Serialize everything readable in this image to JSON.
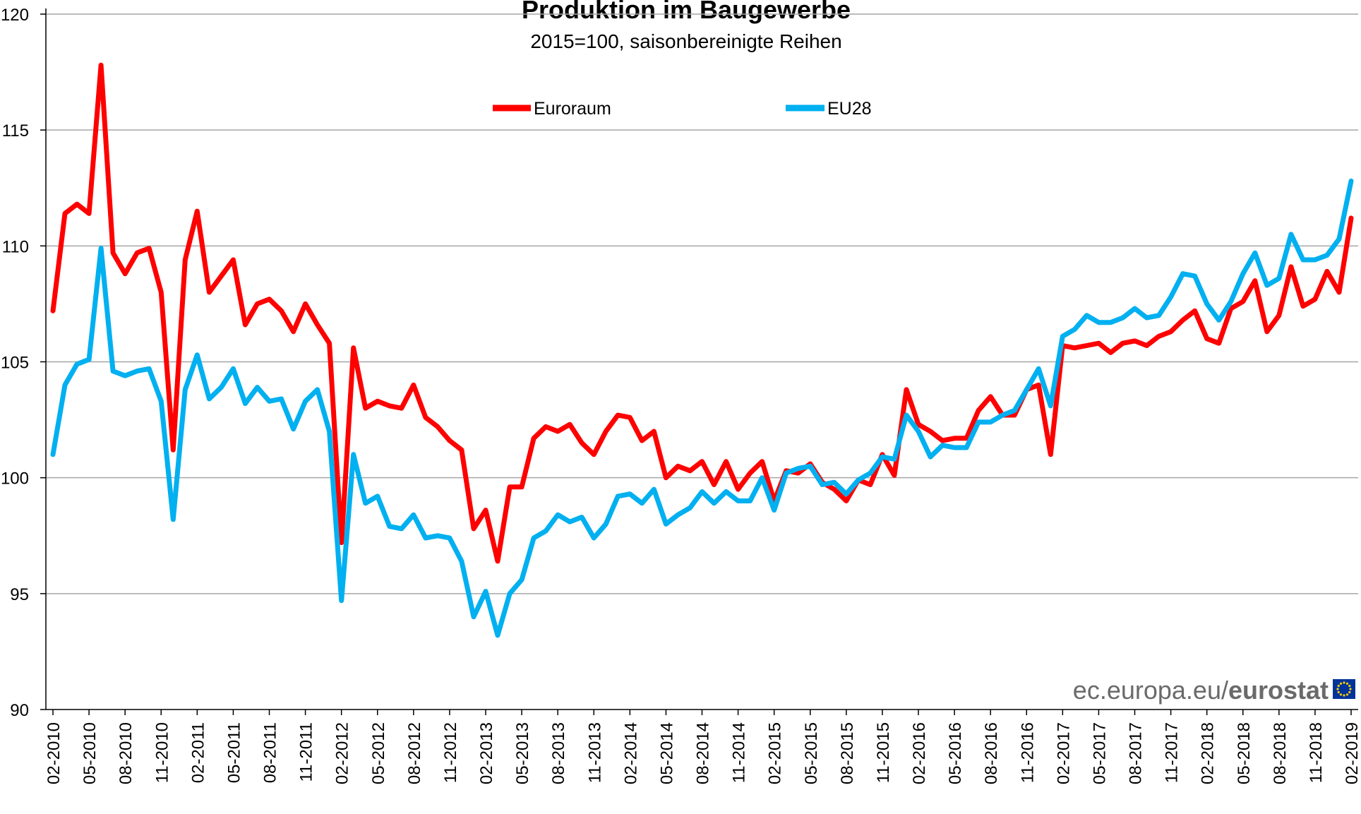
{
  "chart_data": {
    "type": "line",
    "title": "Produktion im Baugewerbe",
    "subtitle": "2015=100, saisonbereinigte Reihen",
    "xlabel": "",
    "ylabel": "",
    "ylim": [
      90,
      120
    ],
    "yticks": [
      90,
      95,
      100,
      105,
      110,
      115,
      120
    ],
    "grid": "horizontal",
    "legend_position": "top",
    "x_start": "02-2010",
    "x_end": "02-2019",
    "x_tick_labels": [
      "02-2010",
      "05-2010",
      "08-2010",
      "11-2010",
      "02-2011",
      "05-2011",
      "08-2011",
      "11-2011",
      "02-2012",
      "05-2012",
      "08-2012",
      "11-2012",
      "02-2013",
      "05-2013",
      "08-2013",
      "11-2013",
      "02-2014",
      "05-2014",
      "08-2014",
      "11-2014",
      "02-2015",
      "05-2015",
      "08-2015",
      "11-2015",
      "02-2016",
      "05-2016",
      "08-2016",
      "11-2016",
      "02-2017",
      "05-2017",
      "08-2017",
      "11-2017",
      "02-2018",
      "05-2018",
      "08-2018",
      "11-2018",
      "02-2019"
    ],
    "series": [
      {
        "name": "Euroraum",
        "color": "#ff0000",
        "values": [
          107.2,
          111.4,
          111.8,
          111.4,
          117.8,
          109.7,
          108.8,
          109.7,
          109.9,
          108.0,
          101.2,
          109.4,
          111.5,
          108.0,
          108.7,
          109.4,
          106.6,
          107.5,
          107.7,
          107.2,
          106.3,
          107.5,
          106.6,
          105.8,
          97.2,
          105.6,
          103.0,
          103.3,
          103.1,
          103.0,
          104.0,
          102.6,
          102.2,
          101.6,
          101.2,
          97.8,
          98.6,
          96.4,
          99.6,
          99.6,
          101.7,
          102.2,
          102.0,
          102.3,
          101.5,
          101.0,
          102.0,
          102.7,
          102.6,
          101.6,
          102.0,
          100.0,
          100.5,
          100.3,
          100.7,
          99.7,
          100.7,
          99.5,
          100.2,
          100.7,
          99.0,
          100.3,
          100.2,
          100.6,
          99.8,
          99.5,
          99.0,
          99.9,
          99.7,
          101.0,
          100.1,
          103.8,
          102.3,
          102.0,
          101.6,
          101.7,
          101.7,
          102.9,
          103.5,
          102.7,
          102.7,
          103.8,
          104.0,
          101.0,
          105.7,
          105.6,
          105.7,
          105.8,
          105.4,
          105.8,
          105.9,
          105.7,
          106.1,
          106.3,
          106.8,
          107.2,
          106.0,
          105.8,
          107.3,
          107.6,
          108.5,
          106.3,
          107.0,
          109.1,
          107.4,
          107.7,
          108.9,
          108.0,
          111.2
        ]
      },
      {
        "name": "EU28",
        "color": "#00b0f0",
        "values": [
          101.0,
          104.0,
          104.9,
          105.1,
          109.9,
          104.6,
          104.4,
          104.6,
          104.7,
          103.3,
          98.2,
          103.8,
          105.3,
          103.4,
          103.9,
          104.7,
          103.2,
          103.9,
          103.3,
          103.4,
          102.1,
          103.3,
          103.8,
          102.0,
          94.7,
          101.0,
          98.9,
          99.2,
          97.9,
          97.8,
          98.4,
          97.4,
          97.5,
          97.4,
          96.4,
          94.0,
          95.1,
          93.2,
          95.0,
          95.6,
          97.4,
          97.7,
          98.4,
          98.1,
          98.3,
          97.4,
          98.0,
          99.2,
          99.3,
          98.9,
          99.5,
          98.0,
          98.4,
          98.7,
          99.4,
          98.9,
          99.4,
          99.0,
          99.0,
          100.0,
          98.6,
          100.2,
          100.4,
          100.5,
          99.7,
          99.8,
          99.3,
          99.9,
          100.2,
          100.9,
          100.8,
          102.7,
          102.0,
          100.9,
          101.4,
          101.3,
          101.3,
          102.4,
          102.4,
          102.7,
          102.9,
          103.8,
          104.7,
          103.1,
          106.1,
          106.4,
          107.0,
          106.7,
          106.7,
          106.9,
          107.3,
          106.9,
          107.0,
          107.8,
          108.8,
          108.7,
          107.5,
          106.8,
          107.6,
          108.8,
          109.7,
          108.3,
          108.6,
          110.5,
          109.4,
          109.4,
          109.6,
          110.3,
          112.8
        ]
      }
    ]
  },
  "branding": {
    "domain_text": "ec.europa.eu/",
    "brand_text": "eurostat",
    "flag_color": "#003399",
    "star_color": "#ffcc00"
  }
}
